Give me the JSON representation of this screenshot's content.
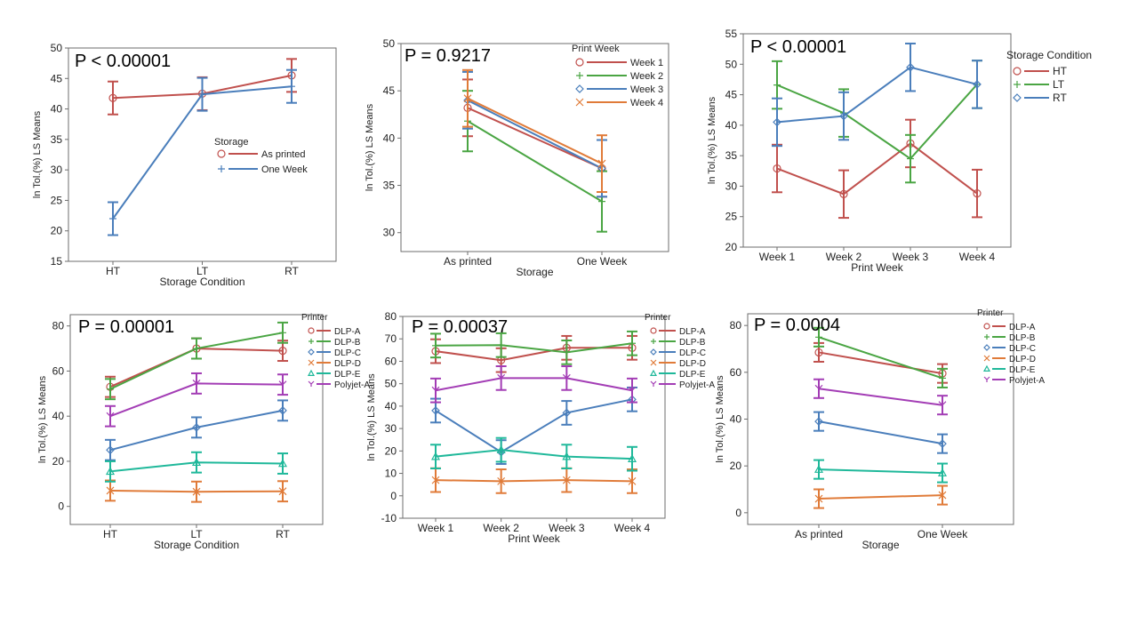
{
  "chart_data": [
    {
      "type": "line",
      "pvalue": "P < 0.00001",
      "xlabel": "Storage Condition",
      "ylabel": "ln Tol.(%) LS Means",
      "categories": [
        "HT",
        "LT",
        "RT"
      ],
      "ylim": [
        15,
        50
      ],
      "yticks": [
        15,
        20,
        25,
        30,
        35,
        40,
        45,
        50
      ],
      "legend": {
        "title": "Storage",
        "placement": "center-right"
      },
      "series": [
        {
          "name": "As printed",
          "color": "#c0504d",
          "marker": "o",
          "values": [
            41.8,
            42.5,
            45.5
          ],
          "errors": [
            2.7,
            2.7,
            2.7
          ]
        },
        {
          "name": "One Week",
          "color": "#4a7ebb",
          "marker": "+",
          "values": [
            22.0,
            42.4,
            43.7
          ],
          "errors": [
            2.7,
            2.7,
            2.7
          ]
        }
      ]
    },
    {
      "type": "line",
      "pvalue": "P = 0.9217",
      "xlabel": "Storage",
      "ylabel": "ln Tol.(%) LS Means",
      "categories": [
        "As printed",
        "One Week"
      ],
      "ylim": [
        28,
        50
      ],
      "yticks": [
        30,
        35,
        40,
        45,
        50
      ],
      "legend": {
        "title": "Print Week",
        "placement": "top-right"
      },
      "series": [
        {
          "name": "Week 1",
          "color": "#c0504d",
          "marker": "o",
          "values": [
            43.2,
            36.8
          ],
          "errors": [
            3.0,
            3.0
          ]
        },
        {
          "name": "Week 2",
          "color": "#4aa543",
          "marker": "+",
          "values": [
            41.8,
            33.3
          ],
          "errors": [
            3.2,
            3.2
          ]
        },
        {
          "name": "Week 3",
          "color": "#4a7ebb",
          "marker": "d",
          "values": [
            44.0,
            36.8
          ],
          "errors": [
            3.0,
            3.0
          ]
        },
        {
          "name": "Week 4",
          "color": "#e07b39",
          "marker": "x",
          "values": [
            44.2,
            37.3
          ],
          "errors": [
            3.0,
            3.0
          ]
        }
      ]
    },
    {
      "type": "line",
      "pvalue": "P < 0.00001",
      "xlabel": "Print Week",
      "ylabel": "ln Tol.(%) LS Means",
      "categories": [
        "Week 1",
        "Week 2",
        "Week 3",
        "Week 4"
      ],
      "ylim": [
        20,
        55
      ],
      "yticks": [
        20,
        25,
        30,
        35,
        40,
        45,
        50,
        55
      ],
      "legend": {
        "title": "Storage Condition",
        "placement": "top-right"
      },
      "series": [
        {
          "name": "HT",
          "color": "#c0504d",
          "marker": "o",
          "values": [
            32.9,
            28.7,
            37.0,
            28.8
          ],
          "errors": [
            3.9,
            3.9,
            3.9,
            3.9
          ]
        },
        {
          "name": "LT",
          "color": "#4aa543",
          "marker": "+",
          "values": [
            46.6,
            42.0,
            34.5,
            46.7
          ],
          "errors": [
            3.9,
            3.9,
            3.9,
            3.9
          ]
        },
        {
          "name": "RT",
          "color": "#4a7ebb",
          "marker": "d",
          "values": [
            40.5,
            41.5,
            49.5,
            46.7
          ],
          "errors": [
            3.9,
            3.9,
            3.9,
            3.9
          ]
        }
      ]
    },
    {
      "type": "line",
      "pvalue": "P = 0.00001",
      "xlabel": "Storage Condition",
      "ylabel": "ln Tol.(%) LS Means",
      "categories": [
        "HT",
        "LT",
        "RT"
      ],
      "ylim": [
        -8,
        85
      ],
      "yticks": [
        0,
        20,
        40,
        60,
        80
      ],
      "legend": {
        "title": "Printer",
        "placement": "right"
      },
      "series": [
        {
          "name": "DLP-A",
          "color": "#c0504d",
          "marker": "o",
          "values": [
            53.0,
            70.0,
            69.0
          ],
          "errors": [
            4.5,
            4.5,
            4.5
          ]
        },
        {
          "name": "DLP-B",
          "color": "#4aa543",
          "marker": "+",
          "values": [
            52.0,
            70.0,
            77.0
          ],
          "errors": [
            4.5,
            4.5,
            4.5
          ]
        },
        {
          "name": "DLP-C",
          "color": "#4a7ebb",
          "marker": "d",
          "values": [
            25.0,
            35.0,
            42.5
          ],
          "errors": [
            4.5,
            4.5,
            4.5
          ]
        },
        {
          "name": "DLP-D",
          "color": "#e07b39",
          "marker": "x",
          "values": [
            7.0,
            6.5,
            6.7
          ],
          "errors": [
            4.5,
            4.5,
            4.5
          ]
        },
        {
          "name": "DLP-E",
          "color": "#1fb89a",
          "marker": "t",
          "values": [
            15.5,
            19.5,
            19.0
          ],
          "errors": [
            4.5,
            4.5,
            4.5
          ]
        },
        {
          "name": "Polyjet-A",
          "color": "#a33db5",
          "marker": "y",
          "values": [
            40.0,
            54.5,
            54.0
          ],
          "errors": [
            4.5,
            4.5,
            4.5
          ]
        }
      ]
    },
    {
      "type": "line",
      "pvalue": "P = 0.00037",
      "xlabel": "Print Week",
      "ylabel": "ln Tol.(%) LS Means",
      "categories": [
        "Week 1",
        "Week 2",
        "Week 3",
        "Week 4"
      ],
      "ylim": [
        -10,
        80
      ],
      "yticks": [
        -10,
        0,
        10,
        20,
        30,
        40,
        50,
        60,
        70,
        80
      ],
      "legend": {
        "title": "Printer",
        "placement": "right"
      },
      "series": [
        {
          "name": "DLP-A",
          "color": "#c0504d",
          "marker": "o",
          "values": [
            64.5,
            60.5,
            66.0,
            66.0
          ],
          "errors": [
            5.3,
            5.3,
            5.3,
            5.3
          ]
        },
        {
          "name": "DLP-B",
          "color": "#4aa543",
          "marker": "+",
          "values": [
            67.0,
            67.2,
            64.0,
            68.0
          ],
          "errors": [
            5.3,
            5.3,
            5.3,
            5.3
          ]
        },
        {
          "name": "DLP-C",
          "color": "#4a7ebb",
          "marker": "d",
          "values": [
            38.0,
            19.5,
            37.0,
            43.0
          ],
          "errors": [
            5.3,
            5.3,
            5.3,
            5.3
          ]
        },
        {
          "name": "DLP-D",
          "color": "#e07b39",
          "marker": "x",
          "values": [
            7.0,
            6.5,
            7.0,
            6.5
          ],
          "errors": [
            5.3,
            5.3,
            5.3,
            5.3
          ]
        },
        {
          "name": "DLP-E",
          "color": "#1fb89a",
          "marker": "t",
          "values": [
            17.5,
            20.5,
            17.5,
            16.5
          ],
          "errors": [
            5.3,
            5.3,
            5.3,
            5.3
          ]
        },
        {
          "name": "Polyjet-A",
          "color": "#a33db5",
          "marker": "y",
          "values": [
            47.0,
            52.5,
            52.5,
            47.0
          ],
          "errors": [
            5.3,
            5.3,
            5.3,
            5.3
          ]
        }
      ]
    },
    {
      "type": "line",
      "pvalue": "P = 0.0004",
      "xlabel": "Storage",
      "ylabel": "ln Tol.(%) LS Means",
      "categories": [
        "As printed",
        "One Week"
      ],
      "ylim": [
        -5,
        85
      ],
      "yticks": [
        0,
        20,
        40,
        60,
        80
      ],
      "legend": {
        "title": "Printer",
        "placement": "top-right"
      },
      "series": [
        {
          "name": "DLP-A",
          "color": "#c0504d",
          "marker": "o",
          "values": [
            68.5,
            59.5
          ],
          "errors": [
            4.0,
            4.0
          ]
        },
        {
          "name": "DLP-B",
          "color": "#4aa543",
          "marker": "+",
          "values": [
            75.0,
            57.5
          ],
          "errors": [
            4.0,
            4.0
          ]
        },
        {
          "name": "DLP-C",
          "color": "#4a7ebb",
          "marker": "d",
          "values": [
            39.0,
            29.5
          ],
          "errors": [
            4.0,
            4.0
          ]
        },
        {
          "name": "DLP-D",
          "color": "#e07b39",
          "marker": "x",
          "values": [
            6.0,
            7.5
          ],
          "errors": [
            4.0,
            4.0
          ]
        },
        {
          "name": "DLP-E",
          "color": "#1fb89a",
          "marker": "t",
          "values": [
            18.5,
            17.0
          ],
          "errors": [
            4.0,
            4.0
          ]
        },
        {
          "name": "Polyjet-A",
          "color": "#a33db5",
          "marker": "y",
          "values": [
            53.0,
            46.0
          ],
          "errors": [
            4.0,
            4.0
          ]
        }
      ]
    }
  ]
}
